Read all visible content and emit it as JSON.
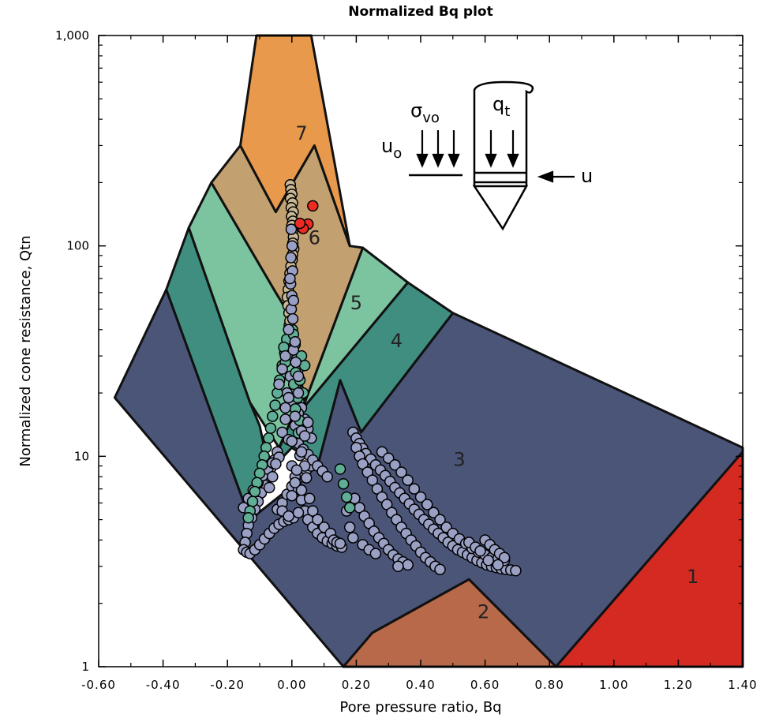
{
  "chart_data": {
    "type": "scatter",
    "title": "Normalized Bq plot",
    "xlabel": "Pore pressure ratio, Bq",
    "ylabel": "Normalized cone resistance, Qtn",
    "xlim": [
      -0.6,
      1.4
    ],
    "ylim": [
      1,
      1000
    ],
    "yscale": "log",
    "x_ticks": [
      "-0.60",
      "-0.40",
      "-0.20",
      "0.00",
      "0.20",
      "0.40",
      "0.60",
      "0.80",
      "1.00",
      "1.20",
      "1.40"
    ],
    "y_ticks": [
      "1",
      "10",
      "100",
      "1,000"
    ],
    "grid": false,
    "zone_labels": [
      "1",
      "2",
      "3",
      "4",
      "5",
      "6",
      "7"
    ],
    "zone_colors": {
      "1": "#d42a22",
      "2": "#b8694a",
      "3": "#4a5578",
      "4": "#3f8e80",
      "5": "#7cc4a0",
      "6": "#c2a070",
      "7": "#e8994b"
    },
    "marker_colors": {
      "zone3": "#9aa0c4",
      "zone4_5": "#5fae95",
      "zone6": "#c8b896",
      "zone7": "#ee2b22"
    },
    "inset_labels": {
      "sigma": "σ",
      "sigma_sub": "vo",
      "u0": "u",
      "u0_sub": "o",
      "qt": "q",
      "qt_sub": "t",
      "u": "u"
    },
    "series_zone6": [
      [
        -0.005,
        195
      ],
      [
        -0.003,
        185
      ],
      [
        0.0,
        176
      ],
      [
        -0.004,
        168
      ],
      [
        0.002,
        160
      ],
      [
        -0.002,
        152
      ],
      [
        0.004,
        145
      ],
      [
        -0.001,
        138
      ],
      [
        0.003,
        131
      ],
      [
        0.0,
        125
      ],
      [
        0.002,
        118
      ],
      [
        0.005,
        110
      ],
      [
        0.003,
        103
      ],
      [
        0.006,
        97
      ],
      [
        0.002,
        91
      ],
      [
        0.001,
        86
      ],
      [
        -0.003,
        80
      ],
      [
        -0.006,
        74
      ],
      [
        -0.009,
        68
      ],
      [
        -0.011,
        62
      ],
      [
        -0.014,
        57
      ],
      [
        -0.012,
        52
      ],
      [
        -0.009,
        48
      ],
      [
        -0.006,
        44
      ]
    ],
    "series_zone7": [
      [
        0.065,
        155
      ],
      [
        0.05,
        127
      ],
      [
        0.035,
        121
      ],
      [
        0.025,
        128
      ]
    ],
    "series_zone45": [
      [
        -0.008,
        42
      ],
      [
        0.002,
        40
      ],
      [
        -0.016,
        36
      ],
      [
        0.01,
        34
      ],
      [
        -0.022,
        31
      ],
      [
        0.015,
        29
      ],
      [
        -0.03,
        27
      ],
      [
        0.012,
        25
      ],
      [
        -0.038,
        23
      ],
      [
        0.006,
        22
      ],
      [
        -0.045,
        20
      ],
      [
        0.018,
        19
      ],
      [
        -0.052,
        17.5
      ],
      [
        0.011,
        16.8
      ],
      [
        -0.06,
        15.5
      ],
      [
        0.024,
        14.8
      ],
      [
        -0.066,
        13.6
      ],
      [
        0.02,
        12.9
      ],
      [
        -0.072,
        12.2
      ],
      [
        -0.08,
        11
      ],
      [
        -0.086,
        10
      ],
      [
        -0.092,
        9.1
      ],
      [
        -0.1,
        8.3
      ],
      [
        -0.108,
        7.5
      ],
      [
        -0.115,
        6.8
      ],
      [
        -0.122,
        6.1
      ],
      [
        -0.13,
        5.5
      ],
      [
        -0.135,
        5.1
      ],
      [
        0.15,
        8.7
      ],
      [
        0.16,
        7.4
      ],
      [
        0.17,
        6.4
      ],
      [
        0.18,
        5.7
      ],
      [
        0.03,
        30
      ],
      [
        0.04,
        27
      ],
      [
        0.025,
        23
      ],
      [
        0.035,
        20
      ],
      [
        -0.02,
        28
      ],
      [
        -0.025,
        33
      ],
      [
        0.005,
        38
      ]
    ],
    "series_zone3": [
      [
        0.19,
        13
      ],
      [
        0.2,
        12.2
      ],
      [
        0.21,
        11.5
      ],
      [
        0.22,
        10.9
      ],
      [
        0.23,
        10.3
      ],
      [
        0.245,
        9.7
      ],
      [
        0.26,
        9.1
      ],
      [
        0.275,
        8.6
      ],
      [
        0.29,
        8.1
      ],
      [
        0.305,
        7.6
      ],
      [
        0.32,
        7.1
      ],
      [
        0.335,
        6.7
      ],
      [
        0.35,
        6.3
      ],
      [
        0.365,
        5.95
      ],
      [
        0.38,
        5.6
      ],
      [
        0.395,
        5.3
      ],
      [
        0.41,
        5.0
      ],
      [
        0.425,
        4.75
      ],
      [
        0.44,
        4.5
      ],
      [
        0.455,
        4.3
      ],
      [
        0.47,
        4.1
      ],
      [
        0.485,
        3.9
      ],
      [
        0.5,
        3.75
      ],
      [
        0.515,
        3.6
      ],
      [
        0.53,
        3.5
      ],
      [
        0.545,
        3.4
      ],
      [
        0.56,
        3.3
      ],
      [
        0.575,
        3.2
      ],
      [
        0.59,
        3.12
      ],
      [
        0.605,
        3.05
      ],
      [
        0.62,
        3.0
      ],
      [
        0.635,
        2.96
      ],
      [
        0.65,
        2.92
      ],
      [
        0.665,
        2.9
      ],
      [
        0.68,
        2.88
      ],
      [
        0.695,
        2.86
      ],
      [
        0.2,
        11
      ],
      [
        0.21,
        10
      ],
      [
        0.22,
        9.2
      ],
      [
        0.235,
        8.4
      ],
      [
        0.25,
        7.7
      ],
      [
        0.265,
        7.0
      ],
      [
        0.28,
        6.4
      ],
      [
        0.295,
        5.9
      ],
      [
        0.31,
        5.4
      ],
      [
        0.325,
        5.0
      ],
      [
        0.34,
        4.6
      ],
      [
        0.355,
        4.3
      ],
      [
        0.37,
        4.0
      ],
      [
        0.385,
        3.75
      ],
      [
        0.4,
        3.5
      ],
      [
        0.415,
        3.3
      ],
      [
        0.43,
        3.15
      ],
      [
        0.445,
        3.0
      ],
      [
        0.46,
        2.9
      ],
      [
        0.28,
        10.5
      ],
      [
        0.3,
        9.8
      ],
      [
        0.32,
        9.1
      ],
      [
        0.34,
        8.4
      ],
      [
        0.36,
        7.7
      ],
      [
        0.38,
        7.0
      ],
      [
        0.4,
        6.4
      ],
      [
        0.42,
        5.9
      ],
      [
        0.44,
        5.4
      ],
      [
        0.46,
        5.0
      ],
      [
        0.48,
        4.6
      ],
      [
        0.5,
        4.3
      ],
      [
        0.52,
        4.05
      ],
      [
        0.54,
        3.85
      ],
      [
        0.56,
        3.65
      ],
      [
        0.58,
        3.5
      ],
      [
        0.6,
        3.4
      ],
      [
        0.62,
        3.3
      ],
      [
        0.64,
        3.25
      ],
      [
        0.66,
        3.2
      ],
      [
        0.195,
        6.3
      ],
      [
        0.21,
        5.7
      ],
      [
        0.225,
        5.2
      ],
      [
        0.24,
        4.8
      ],
      [
        0.255,
        4.4
      ],
      [
        0.27,
        4.1
      ],
      [
        0.285,
        3.85
      ],
      [
        0.3,
        3.6
      ],
      [
        0.315,
        3.4
      ],
      [
        0.33,
        3.25
      ],
      [
        0.345,
        3.15
      ],
      [
        0.36,
        3.05
      ],
      [
        0.6,
        4.0
      ],
      [
        0.615,
        3.8
      ],
      [
        0.63,
        3.6
      ],
      [
        0.645,
        3.45
      ],
      [
        0.66,
        3.3
      ],
      [
        0.55,
        3.9
      ],
      [
        0.57,
        3.7
      ],
      [
        0.585,
        3.55
      ],
      [
        0.61,
        3.2
      ],
      [
        0.64,
        3.05
      ],
      [
        0.17,
        5.5
      ],
      [
        0.18,
        4.6
      ],
      [
        0.19,
        4.1
      ],
      [
        0.22,
        3.8
      ],
      [
        0.24,
        3.6
      ],
      [
        0.26,
        3.45
      ],
      [
        0.33,
        3.0
      ],
      [
        -0.045,
        10.5
      ],
      [
        -0.055,
        9.6
      ],
      [
        -0.065,
        8.8
      ],
      [
        -0.075,
        8.0
      ],
      [
        -0.085,
        7.3
      ],
      [
        -0.095,
        6.7
      ],
      [
        -0.105,
        6.1
      ],
      [
        -0.115,
        5.6
      ],
      [
        -0.125,
        5.1
      ],
      [
        -0.135,
        4.7
      ],
      [
        -0.14,
        4.3
      ],
      [
        -0.145,
        3.9
      ],
      [
        -0.15,
        3.6
      ],
      [
        -0.14,
        3.5
      ],
      [
        -0.13,
        3.45
      ],
      [
        -0.115,
        3.6
      ],
      [
        -0.1,
        3.8
      ],
      [
        -0.085,
        4.05
      ],
      [
        -0.07,
        4.3
      ],
      [
        -0.055,
        4.55
      ],
      [
        -0.04,
        4.75
      ],
      [
        -0.025,
        4.9
      ],
      [
        -0.01,
        5.0
      ],
      [
        0.005,
        5.1
      ],
      [
        -0.15,
        5.7
      ],
      [
        -0.135,
        6.3
      ],
      [
        -0.12,
        6.9
      ],
      [
        -0.105,
        7.5
      ],
      [
        -0.09,
        8.1
      ],
      [
        -0.075,
        8.7
      ],
      [
        -0.06,
        9.3
      ],
      [
        -0.04,
        9.9
      ],
      [
        -0.045,
        5.6
      ],
      [
        -0.03,
        6.0
      ],
      [
        -0.015,
        6.6
      ],
      [
        0.0,
        7.2
      ],
      [
        0.015,
        7.7
      ],
      [
        0.03,
        8.2
      ],
      [
        0.045,
        8.6
      ],
      [
        0.06,
        9.0
      ],
      [
        0.0,
        9.0
      ],
      [
        0.01,
        8.0
      ],
      [
        0.02,
        7.0
      ],
      [
        0.03,
        6.2
      ],
      [
        0.04,
        5.5
      ],
      [
        0.05,
        5.0
      ],
      [
        0.065,
        4.6
      ],
      [
        0.08,
        4.3
      ],
      [
        0.095,
        4.1
      ],
      [
        0.11,
        3.95
      ],
      [
        0.125,
        3.85
      ],
      [
        0.14,
        3.75
      ],
      [
        0.155,
        3.7
      ],
      [
        0.02,
        11.5
      ],
      [
        0.035,
        10.8
      ],
      [
        0.05,
        10.2
      ],
      [
        0.065,
        9.6
      ],
      [
        0.08,
        9.0
      ],
      [
        0.095,
        8.5
      ],
      [
        0.11,
        8.0
      ],
      [
        0.03,
        17
      ],
      [
        0.04,
        15
      ],
      [
        0.05,
        13.5
      ],
      [
        0.06,
        12.2
      ],
      [
        -0.02,
        15
      ],
      [
        -0.03,
        13
      ],
      [
        -0.01,
        12
      ],
      [
        0.01,
        14
      ],
      [
        0.02,
        16
      ],
      [
        0.0,
        18
      ],
      [
        -0.015,
        20
      ],
      [
        0.012,
        22
      ],
      [
        -0.005,
        24
      ],
      [
        0.02,
        26
      ]
    ],
    "series_dark": [
      [
        -0.002,
        120
      ],
      [
        0.001,
        100
      ],
      [
        -0.003,
        88
      ],
      [
        0.002,
        76
      ],
      [
        -0.004,
        66
      ],
      [
        0.0,
        58
      ],
      [
        -0.002,
        50
      ],
      [
        0.003,
        45
      ],
      [
        -0.02,
        30
      ],
      [
        -0.03,
        26
      ],
      [
        -0.04,
        22
      ],
      [
        0.005,
        32
      ],
      [
        0.012,
        28
      ],
      [
        0.02,
        24
      ],
      [
        -0.01,
        19
      ],
      [
        -0.02,
        17
      ],
      [
        0.01,
        15.5
      ],
      [
        0.03,
        13.2
      ],
      [
        0.0,
        11.8
      ],
      [
        0.025,
        10.1
      ],
      [
        0.04,
        9.0
      ],
      [
        0.045,
        7.9
      ],
      [
        0.03,
        6.9
      ],
      [
        0.055,
        6.3
      ],
      [
        0.065,
        5.5
      ],
      [
        0.08,
        5.0
      ],
      [
        0.1,
        4.6
      ],
      [
        0.12,
        4.3
      ],
      [
        0.13,
        4.0
      ],
      [
        0.14,
        3.9
      ],
      [
        0.15,
        3.85
      ],
      [
        -0.05,
        9.2
      ],
      [
        -0.06,
        8.0
      ],
      [
        -0.07,
        7.1
      ],
      [
        -0.03,
        5.5
      ],
      [
        -0.01,
        5.2
      ],
      [
        0.02,
        5.4
      ],
      [
        0.0,
        6.5
      ],
      [
        0.01,
        7.5
      ],
      [
        0.015,
        8.6
      ],
      [
        0.03,
        10.5
      ],
      [
        0.04,
        12.5
      ],
      [
        0.05,
        14.5
      ],
      [
        0.02,
        20
      ],
      [
        0.01,
        35
      ],
      [
        -0.01,
        40
      ],
      [
        0.005,
        55
      ],
      [
        -0.006,
        70
      ]
    ]
  }
}
